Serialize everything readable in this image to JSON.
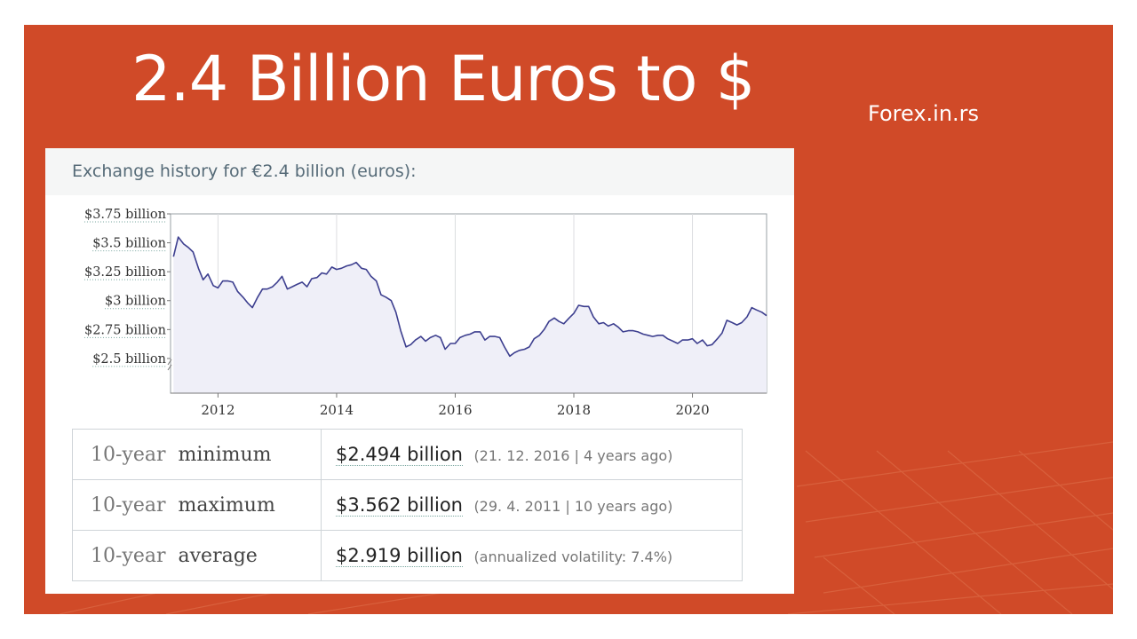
{
  "slide": {
    "title": "2.4 Billion Euros to $",
    "site": "Forex.in.rs",
    "background_color": "#d04a28"
  },
  "panel": {
    "title": "Exchange history for €2.4 billion (euros):"
  },
  "chart_data": {
    "type": "line",
    "title": "",
    "xlabel": "",
    "ylabel": "",
    "x_ticks": [
      "2012",
      "2014",
      "2016",
      "2018",
      "2020"
    ],
    "y_ticks": [
      "$2.5 billion",
      "$2.75 billion",
      "$3 billion",
      "$3.25 billion",
      "$3.5 billion",
      "$3.75 billion"
    ],
    "y_unit": "$ billion",
    "xlim": [
      2011.2,
      2021.25
    ],
    "ylim": [
      2.2,
      3.75
    ],
    "grid": true,
    "fill_under": true,
    "line_color": "#3d3f8f",
    "fill_color": "#efeff8",
    "series": [
      {
        "values": [
          [
            2011.25,
            3.38
          ],
          [
            2011.33,
            3.55
          ],
          [
            2011.42,
            3.49
          ],
          [
            2011.5,
            3.46
          ],
          [
            2011.58,
            3.42
          ],
          [
            2011.67,
            3.28
          ],
          [
            2011.75,
            3.18
          ],
          [
            2011.83,
            3.23
          ],
          [
            2011.92,
            3.13
          ],
          [
            2012.0,
            3.11
          ],
          [
            2012.08,
            3.17
          ],
          [
            2012.17,
            3.17
          ],
          [
            2012.25,
            3.16
          ],
          [
            2012.33,
            3.08
          ],
          [
            2012.42,
            3.03
          ],
          [
            2012.5,
            2.98
          ],
          [
            2012.58,
            2.94
          ],
          [
            2012.67,
            3.03
          ],
          [
            2012.75,
            3.1
          ],
          [
            2012.83,
            3.1
          ],
          [
            2012.92,
            3.12
          ],
          [
            2013.0,
            3.16
          ],
          [
            2013.08,
            3.21
          ],
          [
            2013.17,
            3.1
          ],
          [
            2013.25,
            3.12
          ],
          [
            2013.33,
            3.14
          ],
          [
            2013.42,
            3.16
          ],
          [
            2013.5,
            3.12
          ],
          [
            2013.58,
            3.19
          ],
          [
            2013.67,
            3.2
          ],
          [
            2013.75,
            3.24
          ],
          [
            2013.83,
            3.23
          ],
          [
            2013.92,
            3.29
          ],
          [
            2014.0,
            3.27
          ],
          [
            2014.08,
            3.28
          ],
          [
            2014.17,
            3.3
          ],
          [
            2014.25,
            3.31
          ],
          [
            2014.33,
            3.33
          ],
          [
            2014.42,
            3.28
          ],
          [
            2014.5,
            3.27
          ],
          [
            2014.58,
            3.21
          ],
          [
            2014.67,
            3.17
          ],
          [
            2014.75,
            3.05
          ],
          [
            2014.83,
            3.03
          ],
          [
            2014.92,
            3.0
          ],
          [
            2015.0,
            2.9
          ],
          [
            2015.08,
            2.74
          ],
          [
            2015.17,
            2.6
          ],
          [
            2015.25,
            2.62
          ],
          [
            2015.33,
            2.66
          ],
          [
            2015.42,
            2.69
          ],
          [
            2015.5,
            2.65
          ],
          [
            2015.58,
            2.68
          ],
          [
            2015.67,
            2.7
          ],
          [
            2015.75,
            2.68
          ],
          [
            2015.83,
            2.58
          ],
          [
            2015.92,
            2.63
          ],
          [
            2016.0,
            2.63
          ],
          [
            2016.08,
            2.68
          ],
          [
            2016.17,
            2.7
          ],
          [
            2016.25,
            2.71
          ],
          [
            2016.33,
            2.73
          ],
          [
            2016.42,
            2.73
          ],
          [
            2016.5,
            2.66
          ],
          [
            2016.58,
            2.69
          ],
          [
            2016.67,
            2.69
          ],
          [
            2016.75,
            2.68
          ],
          [
            2016.83,
            2.6
          ],
          [
            2016.92,
            2.52
          ],
          [
            2017.0,
            2.55
          ],
          [
            2017.08,
            2.57
          ],
          [
            2017.17,
            2.58
          ],
          [
            2017.25,
            2.6
          ],
          [
            2017.33,
            2.67
          ],
          [
            2017.42,
            2.7
          ],
          [
            2017.5,
            2.75
          ],
          [
            2017.58,
            2.82
          ],
          [
            2017.67,
            2.85
          ],
          [
            2017.75,
            2.82
          ],
          [
            2017.83,
            2.8
          ],
          [
            2017.92,
            2.85
          ],
          [
            2018.0,
            2.89
          ],
          [
            2018.08,
            2.96
          ],
          [
            2018.17,
            2.95
          ],
          [
            2018.25,
            2.95
          ],
          [
            2018.33,
            2.86
          ],
          [
            2018.42,
            2.8
          ],
          [
            2018.5,
            2.81
          ],
          [
            2018.58,
            2.78
          ],
          [
            2018.67,
            2.8
          ],
          [
            2018.75,
            2.77
          ],
          [
            2018.83,
            2.73
          ],
          [
            2018.92,
            2.74
          ],
          [
            2019.0,
            2.74
          ],
          [
            2019.08,
            2.73
          ],
          [
            2019.17,
            2.71
          ],
          [
            2019.25,
            2.7
          ],
          [
            2019.33,
            2.69
          ],
          [
            2019.42,
            2.7
          ],
          [
            2019.5,
            2.7
          ],
          [
            2019.58,
            2.67
          ],
          [
            2019.67,
            2.65
          ],
          [
            2019.75,
            2.63
          ],
          [
            2019.83,
            2.66
          ],
          [
            2019.92,
            2.66
          ],
          [
            2020.0,
            2.67
          ],
          [
            2020.08,
            2.63
          ],
          [
            2020.17,
            2.66
          ],
          [
            2020.25,
            2.61
          ],
          [
            2020.33,
            2.62
          ],
          [
            2020.42,
            2.67
          ],
          [
            2020.5,
            2.72
          ],
          [
            2020.58,
            2.83
          ],
          [
            2020.67,
            2.81
          ],
          [
            2020.75,
            2.79
          ],
          [
            2020.83,
            2.81
          ],
          [
            2020.92,
            2.86
          ],
          [
            2021.0,
            2.94
          ],
          [
            2021.08,
            2.92
          ],
          [
            2021.17,
            2.9
          ],
          [
            2021.25,
            2.87
          ]
        ]
      }
    ]
  },
  "stats": [
    {
      "period": "10-year",
      "kind": "minimum",
      "value": "$2.494 billion",
      "note": "(21. 12. 2016 | 4 years ago)"
    },
    {
      "period": "10-year",
      "kind": "maximum",
      "value": "$3.562 billion",
      "note": "(29. 4. 2011 | 10 years ago)"
    },
    {
      "period": "10-year",
      "kind": "average",
      "value": "$2.919 billion",
      "note": "(annualized volatility: 7.4%)"
    }
  ]
}
